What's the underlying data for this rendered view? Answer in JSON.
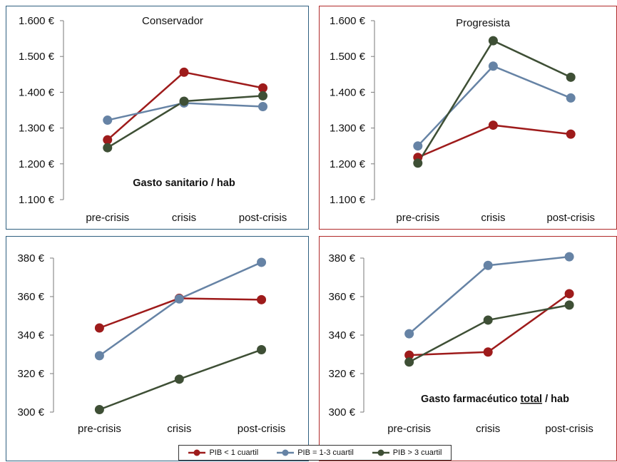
{
  "legend": [
    {
      "label": "PIB < 1 cuartil",
      "color": "#9e1b1b"
    },
    {
      "label": "PIB = 1-3 cuartil",
      "color": "#6683a5"
    },
    {
      "label": "PIB > 3 cuartil",
      "color": "#3e4f35"
    }
  ],
  "chart_data": [
    {
      "type": "line",
      "title": "Conservador",
      "annotation": "Gasto sanitario / hab",
      "categories": [
        "pre-crisis",
        "crisis",
        "post-crisis"
      ],
      "yticks": [
        "1.600 €",
        "1.500 €",
        "1.400 €",
        "1.300 €",
        "1.200 €",
        "1.100 €"
      ],
      "ylim": [
        1100,
        1600
      ],
      "grid": false,
      "series": [
        {
          "name": "PIB < 1 cuartil",
          "values": [
            1267,
            1456,
            1412
          ],
          "color": "#9e1b1b"
        },
        {
          "name": "PIB = 1-3 cuartil",
          "values": [
            1322,
            1370,
            1360
          ],
          "color": "#6683a5"
        },
        {
          "name": "PIB > 3 cuartil",
          "values": [
            1245,
            1375,
            1390
          ],
          "color": "#3e4f35"
        }
      ]
    },
    {
      "type": "line",
      "title": "Progresista",
      "annotation": "",
      "categories": [
        "pre-crisis",
        "crisis",
        "post-crisis"
      ],
      "yticks": [
        "1.600 €",
        "1.500 €",
        "1.400 €",
        "1.300 €",
        "1.200 €",
        "1.100 €"
      ],
      "ylim": [
        1100,
        1600
      ],
      "grid": false,
      "series": [
        {
          "name": "PIB < 1 cuartil",
          "values": [
            1218,
            1308,
            1283
          ],
          "color": "#9e1b1b"
        },
        {
          "name": "PIB = 1-3 cuartil",
          "values": [
            1250,
            1473,
            1384
          ],
          "color": "#6683a5"
        },
        {
          "name": "PIB > 3 cuartil",
          "values": [
            1202,
            1544,
            1442
          ],
          "color": "#3e4f35"
        }
      ]
    },
    {
      "type": "line",
      "title": "",
      "annotation": "",
      "categories": [
        "pre-crisis",
        "crisis",
        "post-crisis"
      ],
      "yticks": [
        "380 €",
        "360 €",
        "340 €",
        "320 €",
        "300 €"
      ],
      "ylim": [
        300,
        380
      ],
      "grid": false,
      "series": [
        {
          "name": "PIB < 1 cuartil",
          "values": [
            343.7,
            359.1,
            358.4
          ],
          "color": "#9e1b1b"
        },
        {
          "name": "PIB = 1-3 cuartil",
          "values": [
            329.3,
            358.8,
            377.8
          ],
          "color": "#6683a5"
        },
        {
          "name": "PIB > 3 cuartil",
          "values": [
            301.3,
            317.1,
            332.4
          ],
          "color": "#3e4f35"
        }
      ]
    },
    {
      "type": "line",
      "title": "",
      "annotation": "Gasto farmacéutico total / hab",
      "annotation_underlined_word": "total",
      "categories": [
        "pre-crisis",
        "crisis",
        "post-crisis"
      ],
      "yticks": [
        "380 €",
        "360 €",
        "340 €",
        "320 €",
        "300 €"
      ],
      "ylim": [
        300,
        380
      ],
      "grid": false,
      "series": [
        {
          "name": "PIB < 1 cuartil",
          "values": [
            329.6,
            331.2,
            361.5
          ],
          "color": "#9e1b1b"
        },
        {
          "name": "PIB = 1-3 cuartil",
          "values": [
            340.7,
            376.2,
            380.7
          ],
          "color": "#6683a5"
        },
        {
          "name": "PIB > 3 cuartil",
          "values": [
            326.0,
            347.8,
            355.6
          ],
          "color": "#3e4f35"
        }
      ]
    }
  ]
}
